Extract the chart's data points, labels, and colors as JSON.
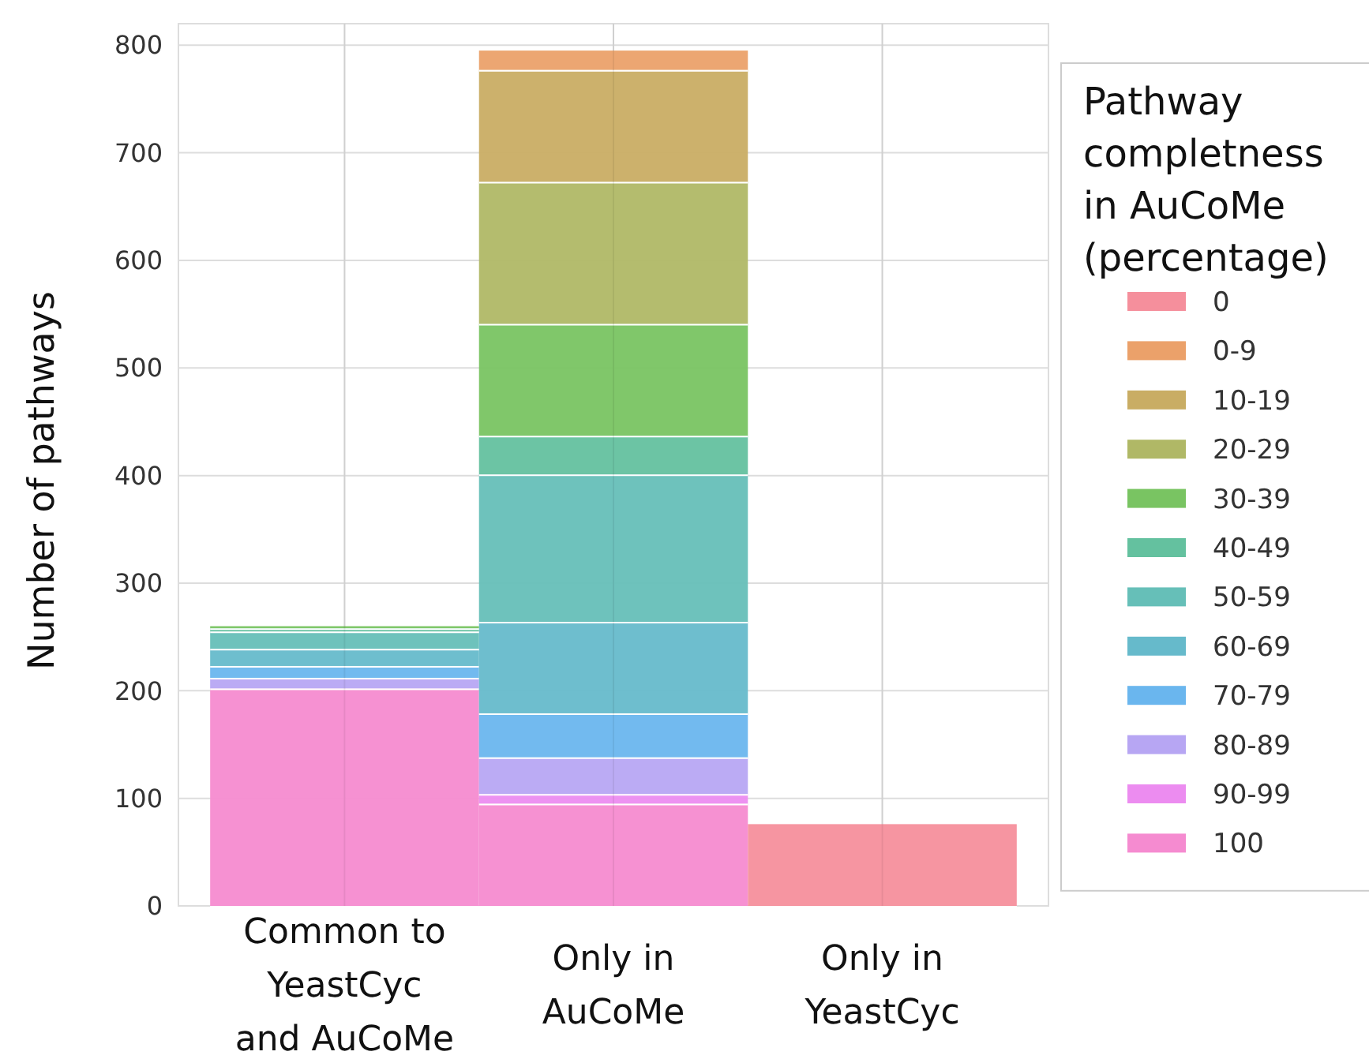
{
  "chart_data": {
    "type": "bar",
    "stacked": true,
    "ylabel": "Number of pathways",
    "legend_title": "Pathway completness in AuCoMe (percentage)",
    "legend": "right",
    "grid": true,
    "categories": [
      "Common to YeastCyc and AuCoMe",
      "Only in AuCoMe",
      "Only in YeastCyc"
    ],
    "ylim": [
      0,
      820
    ],
    "yticks": [
      0,
      100,
      200,
      300,
      400,
      500,
      600,
      700,
      800
    ],
    "series": [
      {
        "name": "100",
        "color": "#f58bd0",
        "values": [
          202,
          95,
          null
        ]
      },
      {
        "name": "90-99",
        "color": "#ec8cf0",
        "values": [
          null,
          9,
          null
        ]
      },
      {
        "name": "80-89",
        "color": "#b7a6f3",
        "values": [
          10,
          34,
          null
        ]
      },
      {
        "name": "70-79",
        "color": "#6ab6ee",
        "values": [
          11,
          41,
          null
        ]
      },
      {
        "name": "60-69",
        "color": "#66bacb",
        "values": [
          16,
          85,
          null
        ]
      },
      {
        "name": "50-59",
        "color": "#66bfb8",
        "values": [
          16,
          137,
          null
        ]
      },
      {
        "name": "40-49",
        "color": "#64c19f",
        "values": [
          3,
          36,
          null
        ]
      },
      {
        "name": "30-39",
        "color": "#79c462",
        "values": [
          2,
          104,
          null
        ]
      },
      {
        "name": "20-29",
        "color": "#b0b866",
        "values": [
          null,
          132,
          null
        ]
      },
      {
        "name": "10-19",
        "color": "#c9ad64",
        "values": [
          null,
          104,
          null
        ]
      },
      {
        "name": "0-9",
        "color": "#eba16a",
        "values": [
          null,
          18,
          null
        ]
      },
      {
        "name": "0",
        "color": "#f58f9c",
        "values": [
          null,
          null,
          76
        ]
      }
    ]
  }
}
